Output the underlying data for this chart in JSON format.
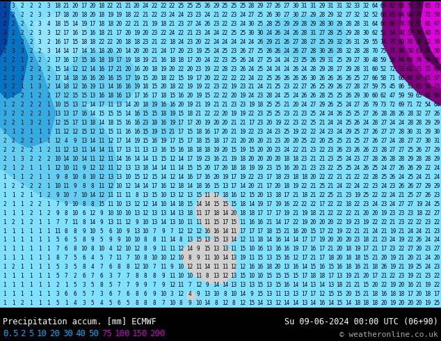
{
  "title_left": "Precipitation accum. [mm] ECMWF",
  "title_right": "Su 09-06-2024 00:00 UTC (06+90)",
  "copyright": "© weatheronline.co.uk",
  "legend_values": [
    "0.5",
    "2",
    "5",
    "10",
    "20",
    "30",
    "40",
    "50",
    "75",
    "100",
    "150",
    "200"
  ],
  "legend_text_colors": [
    "#00aaff",
    "#00aaff",
    "#00aaff",
    "#00aaff",
    "#00aaff",
    "#00aaff",
    "#00aaff",
    "#00aaff",
    "#cc00cc",
    "#cc00cc",
    "#cc00cc",
    "#cc00cc"
  ],
  "ocean_color": "#7fe0ff",
  "precip_light1": "#a0e8ff",
  "precip_light2": "#60ccf0",
  "precip_mid1": "#30a8e0",
  "precip_mid2": "#0070c0",
  "precip_dark1": "#0040a0",
  "precip_dark2": "#002080",
  "precip_purple1": "#c000c0",
  "precip_purple2": "#800080",
  "precip_purple3": "#500050",
  "land_color": "#d0d0d0",
  "number_color": "#000000",
  "number_fontsize": 5.5,
  "bottom_bg": "#000000",
  "bottom_text_color": "#ffffff",
  "copyright_color": "#aaaaaa"
}
